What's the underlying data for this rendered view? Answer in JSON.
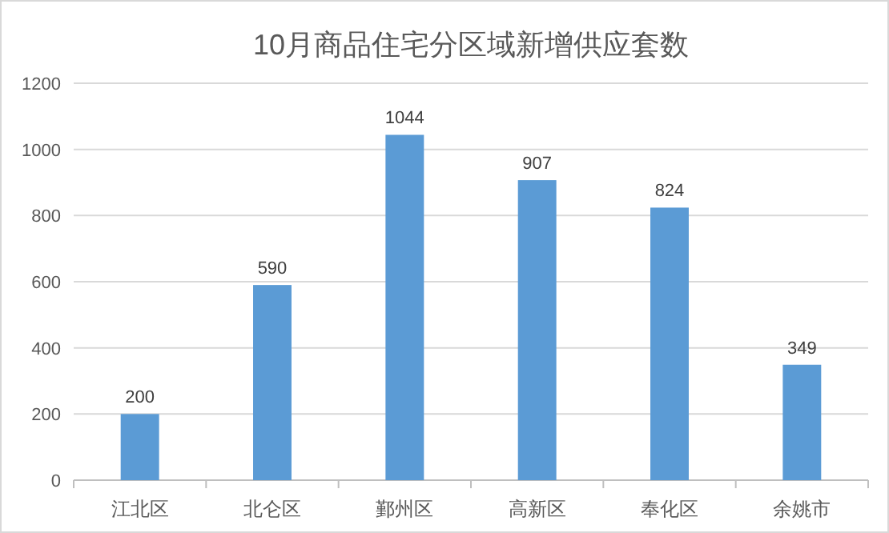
{
  "chart_data": {
    "type": "bar",
    "title": "10月商品住宅分区域新增供应套数",
    "categories": [
      "江北区",
      "北仑区",
      "鄞州区",
      "高新区",
      "奉化区",
      "余姚市"
    ],
    "values": [
      200,
      590,
      1044,
      907,
      824,
      349
    ],
    "color": "#5b9bd5",
    "ylim": [
      0,
      1200
    ],
    "yticks": [
      0,
      200,
      400,
      600,
      800,
      1000,
      1200
    ],
    "grid": "y",
    "data_labels": true
  }
}
